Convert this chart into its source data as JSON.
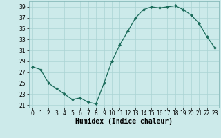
{
  "x": [
    0,
    1,
    2,
    3,
    4,
    5,
    6,
    7,
    8,
    9,
    10,
    11,
    12,
    13,
    14,
    15,
    16,
    17,
    18,
    19,
    20,
    21,
    22,
    23
  ],
  "y": [
    28,
    27.5,
    25,
    24,
    23,
    22,
    22.3,
    21.5,
    21.2,
    25,
    29,
    32,
    34.5,
    37,
    38.5,
    39,
    38.8,
    39,
    39.2,
    38.5,
    37.5,
    36,
    33.5,
    31.5
  ],
  "line_color": "#1a6b5a",
  "marker": "D",
  "marker_size": 2.0,
  "linewidth": 0.9,
  "bg_color": "#cceaea",
  "grid_major_color": "#aad4d4",
  "grid_minor_color": "#bbdfdf",
  "xlabel": "Humidex (Indice chaleur)",
  "xlim": [
    -0.5,
    23.5
  ],
  "ylim": [
    20.5,
    40
  ],
  "yticks": [
    21,
    23,
    25,
    27,
    29,
    31,
    33,
    35,
    37,
    39
  ],
  "xticks": [
    0,
    1,
    2,
    3,
    4,
    5,
    6,
    7,
    8,
    9,
    10,
    11,
    12,
    13,
    14,
    15,
    16,
    17,
    18,
    19,
    20,
    21,
    22,
    23
  ],
  "tick_fontsize": 5.5,
  "xlabel_fontsize": 7.0
}
